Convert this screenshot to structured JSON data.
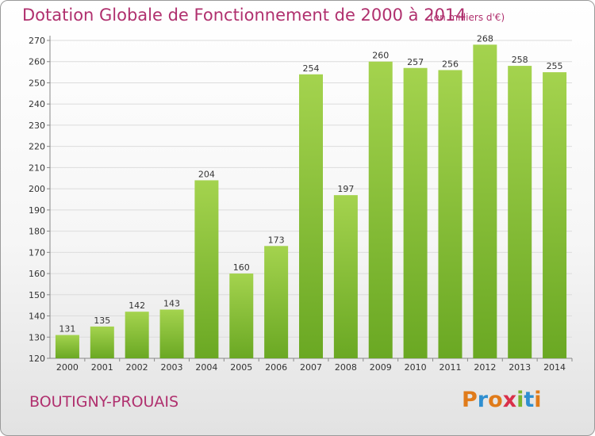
{
  "chart_data": {
    "type": "bar",
    "title": "Dotation Globale de Fonctionnement de 2000 à 2014",
    "subtitle": "(en milliers d'€)",
    "categories": [
      "2000",
      "2001",
      "2002",
      "2003",
      "2004",
      "2005",
      "2006",
      "2007",
      "2008",
      "2009",
      "2010",
      "2011",
      "2012",
      "2013",
      "2014"
    ],
    "values": [
      131,
      135,
      142,
      143,
      204,
      160,
      173,
      254,
      197,
      260,
      257,
      256,
      268,
      258,
      255
    ],
    "ylim": [
      120,
      270
    ],
    "yticks": [
      120,
      130,
      140,
      150,
      160,
      170,
      180,
      190,
      200,
      210,
      220,
      230,
      240,
      250,
      260,
      270
    ],
    "grid": true,
    "bar_color": "#7fb832",
    "bar_highlight": "#a4d34e"
  },
  "footer": {
    "place": "BOUTIGNY-PROUAIS",
    "logo": "Proxiti"
  },
  "colors": {
    "title": "#b0306e",
    "grid": "#dcdcdc",
    "logo_letters": [
      "#e07b1a",
      "#2f8fd0",
      "#e07b1a",
      "#d9304a",
      "#7ab52f",
      "#2f8fd0",
      "#e07b1a"
    ]
  }
}
